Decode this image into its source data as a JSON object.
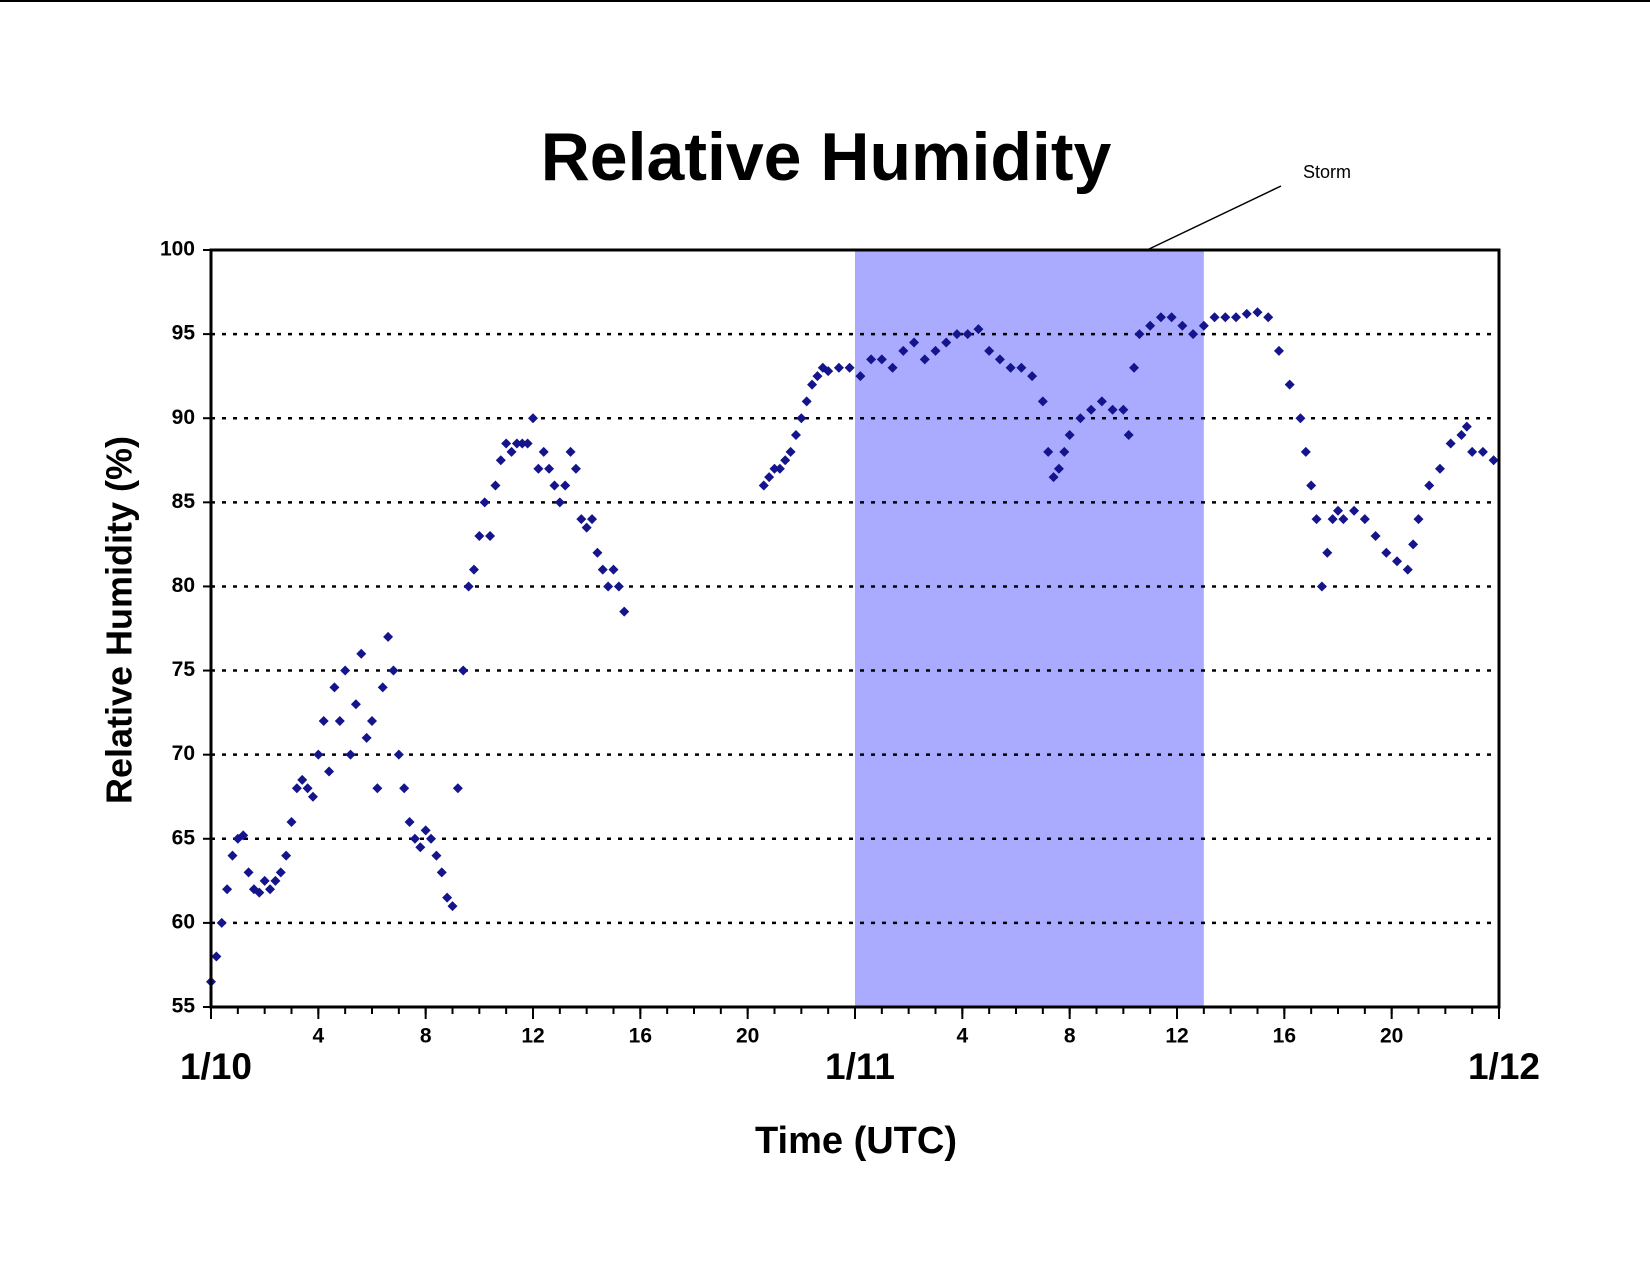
{
  "chart_data": {
    "type": "scatter",
    "title": "Relative Humidity",
    "x_label": "Time (UTC)",
    "y_label": "Relative Humidity (%)",
    "xlim": [
      0,
      48
    ],
    "ylim": [
      55,
      100
    ],
    "yticks": [
      55,
      60,
      65,
      70,
      75,
      80,
      85,
      90,
      95,
      100
    ],
    "xticks": [
      4,
      8,
      12,
      16,
      20,
      {
        "value": 28,
        "label": "4"
      },
      {
        "value": 32,
        "label": "8"
      },
      {
        "value": 36,
        "label": "12"
      },
      {
        "value": 40,
        "label": "16"
      },
      {
        "value": 44,
        "label": "20"
      }
    ],
    "date_labels": [
      {
        "value": 0,
        "label": "1/10"
      },
      {
        "value": 24,
        "label": "1/11"
      },
      {
        "value": 48,
        "label": "1/12"
      }
    ],
    "grid": true,
    "shade": {
      "xrange": [
        24,
        37
      ],
      "color": "#aaaaff"
    },
    "annotation": "Storm",
    "series": [
      {
        "name": "Relative Humidity",
        "color": "#14148c",
        "x": [
          0.0,
          0.2,
          0.4,
          0.6,
          0.8,
          1.0,
          1.2,
          1.4,
          1.6,
          1.8,
          2.0,
          2.2,
          2.4,
          2.6,
          2.8,
          3.0,
          3.2,
          3.4,
          3.6,
          3.8,
          4.0,
          4.2,
          4.4,
          4.6,
          4.8,
          5.0,
          5.2,
          5.4,
          5.6,
          5.8,
          6.0,
          6.2,
          6.4,
          6.6,
          6.8,
          7.0,
          7.2,
          7.4,
          7.6,
          7.8,
          8.0,
          8.2,
          8.4,
          8.6,
          8.8,
          9.0,
          9.2,
          9.4,
          9.6,
          9.8,
          10.0,
          10.2,
          10.4,
          10.6,
          10.8,
          11.0,
          11.2,
          11.4,
          11.6,
          11.8,
          12.0,
          12.2,
          12.4,
          12.6,
          12.8,
          13.0,
          13.2,
          13.4,
          13.6,
          13.8,
          14.0,
          14.2,
          14.4,
          14.6,
          14.8,
          15.0,
          15.2,
          15.4,
          20.6,
          20.8,
          21.0,
          21.2,
          21.4,
          21.6,
          21.8,
          22.0,
          22.2,
          22.4,
          22.6,
          22.8,
          23.0,
          23.4,
          23.8,
          24.2,
          24.6,
          25.0,
          25.4,
          25.8,
          26.2,
          26.6,
          27.0,
          27.4,
          27.8,
          28.2,
          28.6,
          29.0,
          29.4,
          29.8,
          30.2,
          30.6,
          31.0,
          31.2,
          31.4,
          31.6,
          31.8,
          32.0,
          32.4,
          32.8,
          33.2,
          33.6,
          34.0,
          34.2,
          34.4,
          34.6,
          35.0,
          35.4,
          35.8,
          36.2,
          36.6,
          37.0,
          37.4,
          37.8,
          38.2,
          38.6,
          39.0,
          39.4,
          39.8,
          40.2,
          40.6,
          40.8,
          41.0,
          41.2,
          41.4,
          41.6,
          41.8,
          42.0,
          42.2,
          42.6,
          43.0,
          43.4,
          43.8,
          44.2,
          44.6,
          44.8,
          45.0,
          45.4,
          45.8,
          46.2,
          46.6,
          46.8,
          47.0,
          47.4,
          47.8
        ],
        "values": [
          56.5,
          58,
          60,
          62,
          64,
          65,
          65.2,
          63,
          62,
          61.8,
          62.5,
          62,
          62.5,
          63,
          64,
          66,
          68,
          68.5,
          68,
          67.5,
          70,
          72,
          69,
          74,
          72,
          75,
          70,
          73,
          76,
          71,
          72,
          68,
          74,
          77,
          75,
          70,
          68,
          66,
          65,
          64.5,
          65.5,
          65,
          64,
          63,
          61.5,
          61,
          68,
          75,
          80,
          81,
          83,
          85,
          83,
          86,
          87.5,
          88.5,
          88,
          88.5,
          88.5,
          88.5,
          90,
          87,
          88,
          87,
          86,
          85,
          86,
          88,
          87,
          84,
          83.5,
          84,
          82,
          81,
          80,
          81,
          80,
          78.5,
          86,
          86.5,
          87,
          87,
          87.5,
          88,
          89,
          90,
          91,
          92,
          92.5,
          93,
          92.8,
          93,
          93,
          92.5,
          93.5,
          93.5,
          93,
          94,
          94.5,
          93.5,
          94,
          94.5,
          95,
          95,
          95.3,
          94,
          93.5,
          93,
          93,
          92.5,
          91,
          88,
          86.5,
          87,
          88,
          89,
          90,
          90.5,
          91,
          90.5,
          90.5,
          89,
          93,
          95,
          95.5,
          96,
          96,
          95.5,
          95,
          95.5,
          96,
          96,
          96,
          96.2,
          96.3,
          96,
          94,
          92,
          90,
          88,
          86,
          84,
          80,
          82,
          84,
          84.5,
          84,
          84.5,
          84,
          83,
          82,
          81.5,
          81,
          82.5,
          84,
          86,
          87,
          88.5,
          89,
          89.5,
          88,
          88,
          87.5
        ]
      }
    ]
  }
}
